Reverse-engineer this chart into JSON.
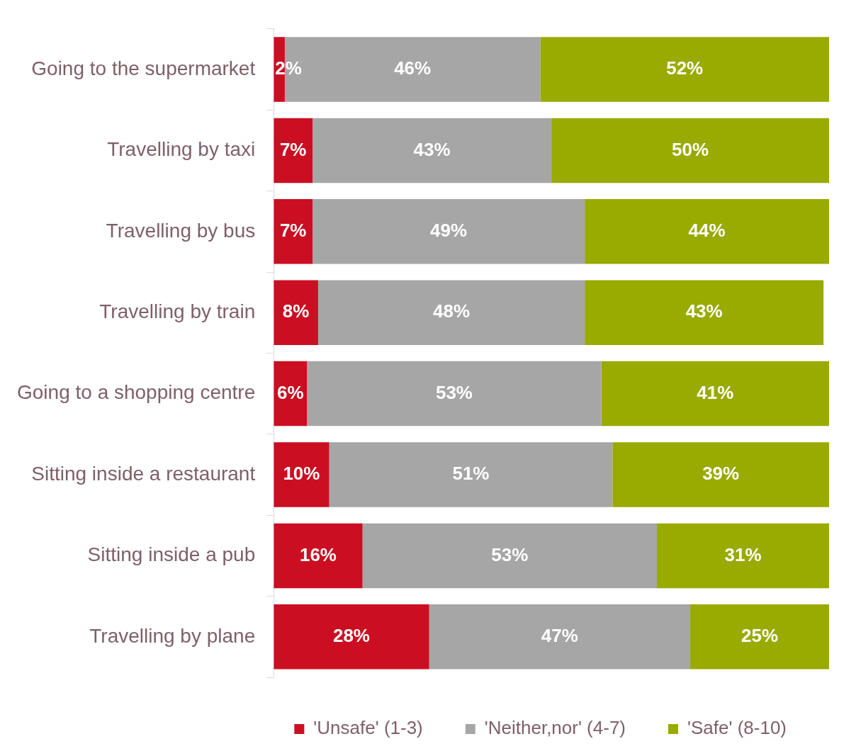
{
  "chart_data": {
    "type": "bar",
    "orientation": "horizontal",
    "stacked": true,
    "legend": "bottom",
    "categories": [
      "Going to the supermarket",
      "Travelling by taxi",
      "Travelling by bus",
      "Travelling by train",
      "Going to a shopping centre",
      "Sitting inside a restaurant",
      "Sitting inside a pub",
      "Travelling by plane"
    ],
    "series": [
      {
        "name": "'Unsafe' (1-3)",
        "color": "#cc0e22",
        "values": [
          2,
          7,
          7,
          8,
          6,
          10,
          16,
          28
        ],
        "value_labels": [
          "2%",
          "7%",
          "7%",
          "8%",
          "6%",
          "10%",
          "16%",
          "28%"
        ]
      },
      {
        "name": "'Neither,nor' (4-7)",
        "color": "#a6a6a6",
        "values": [
          46,
          43,
          49,
          48,
          53,
          51,
          53,
          47
        ],
        "value_labels": [
          "46%",
          "43%",
          "49%",
          "48%",
          "53%",
          "51%",
          "53%",
          "47%"
        ]
      },
      {
        "name": "'Safe' (8-10)",
        "color": "#99aa00",
        "values": [
          52,
          50,
          44,
          43,
          41,
          39,
          31,
          25
        ],
        "value_labels": [
          "52%",
          "50%",
          "44%",
          "43%",
          "41%",
          "39%",
          "31%",
          "25%"
        ]
      }
    ]
  }
}
